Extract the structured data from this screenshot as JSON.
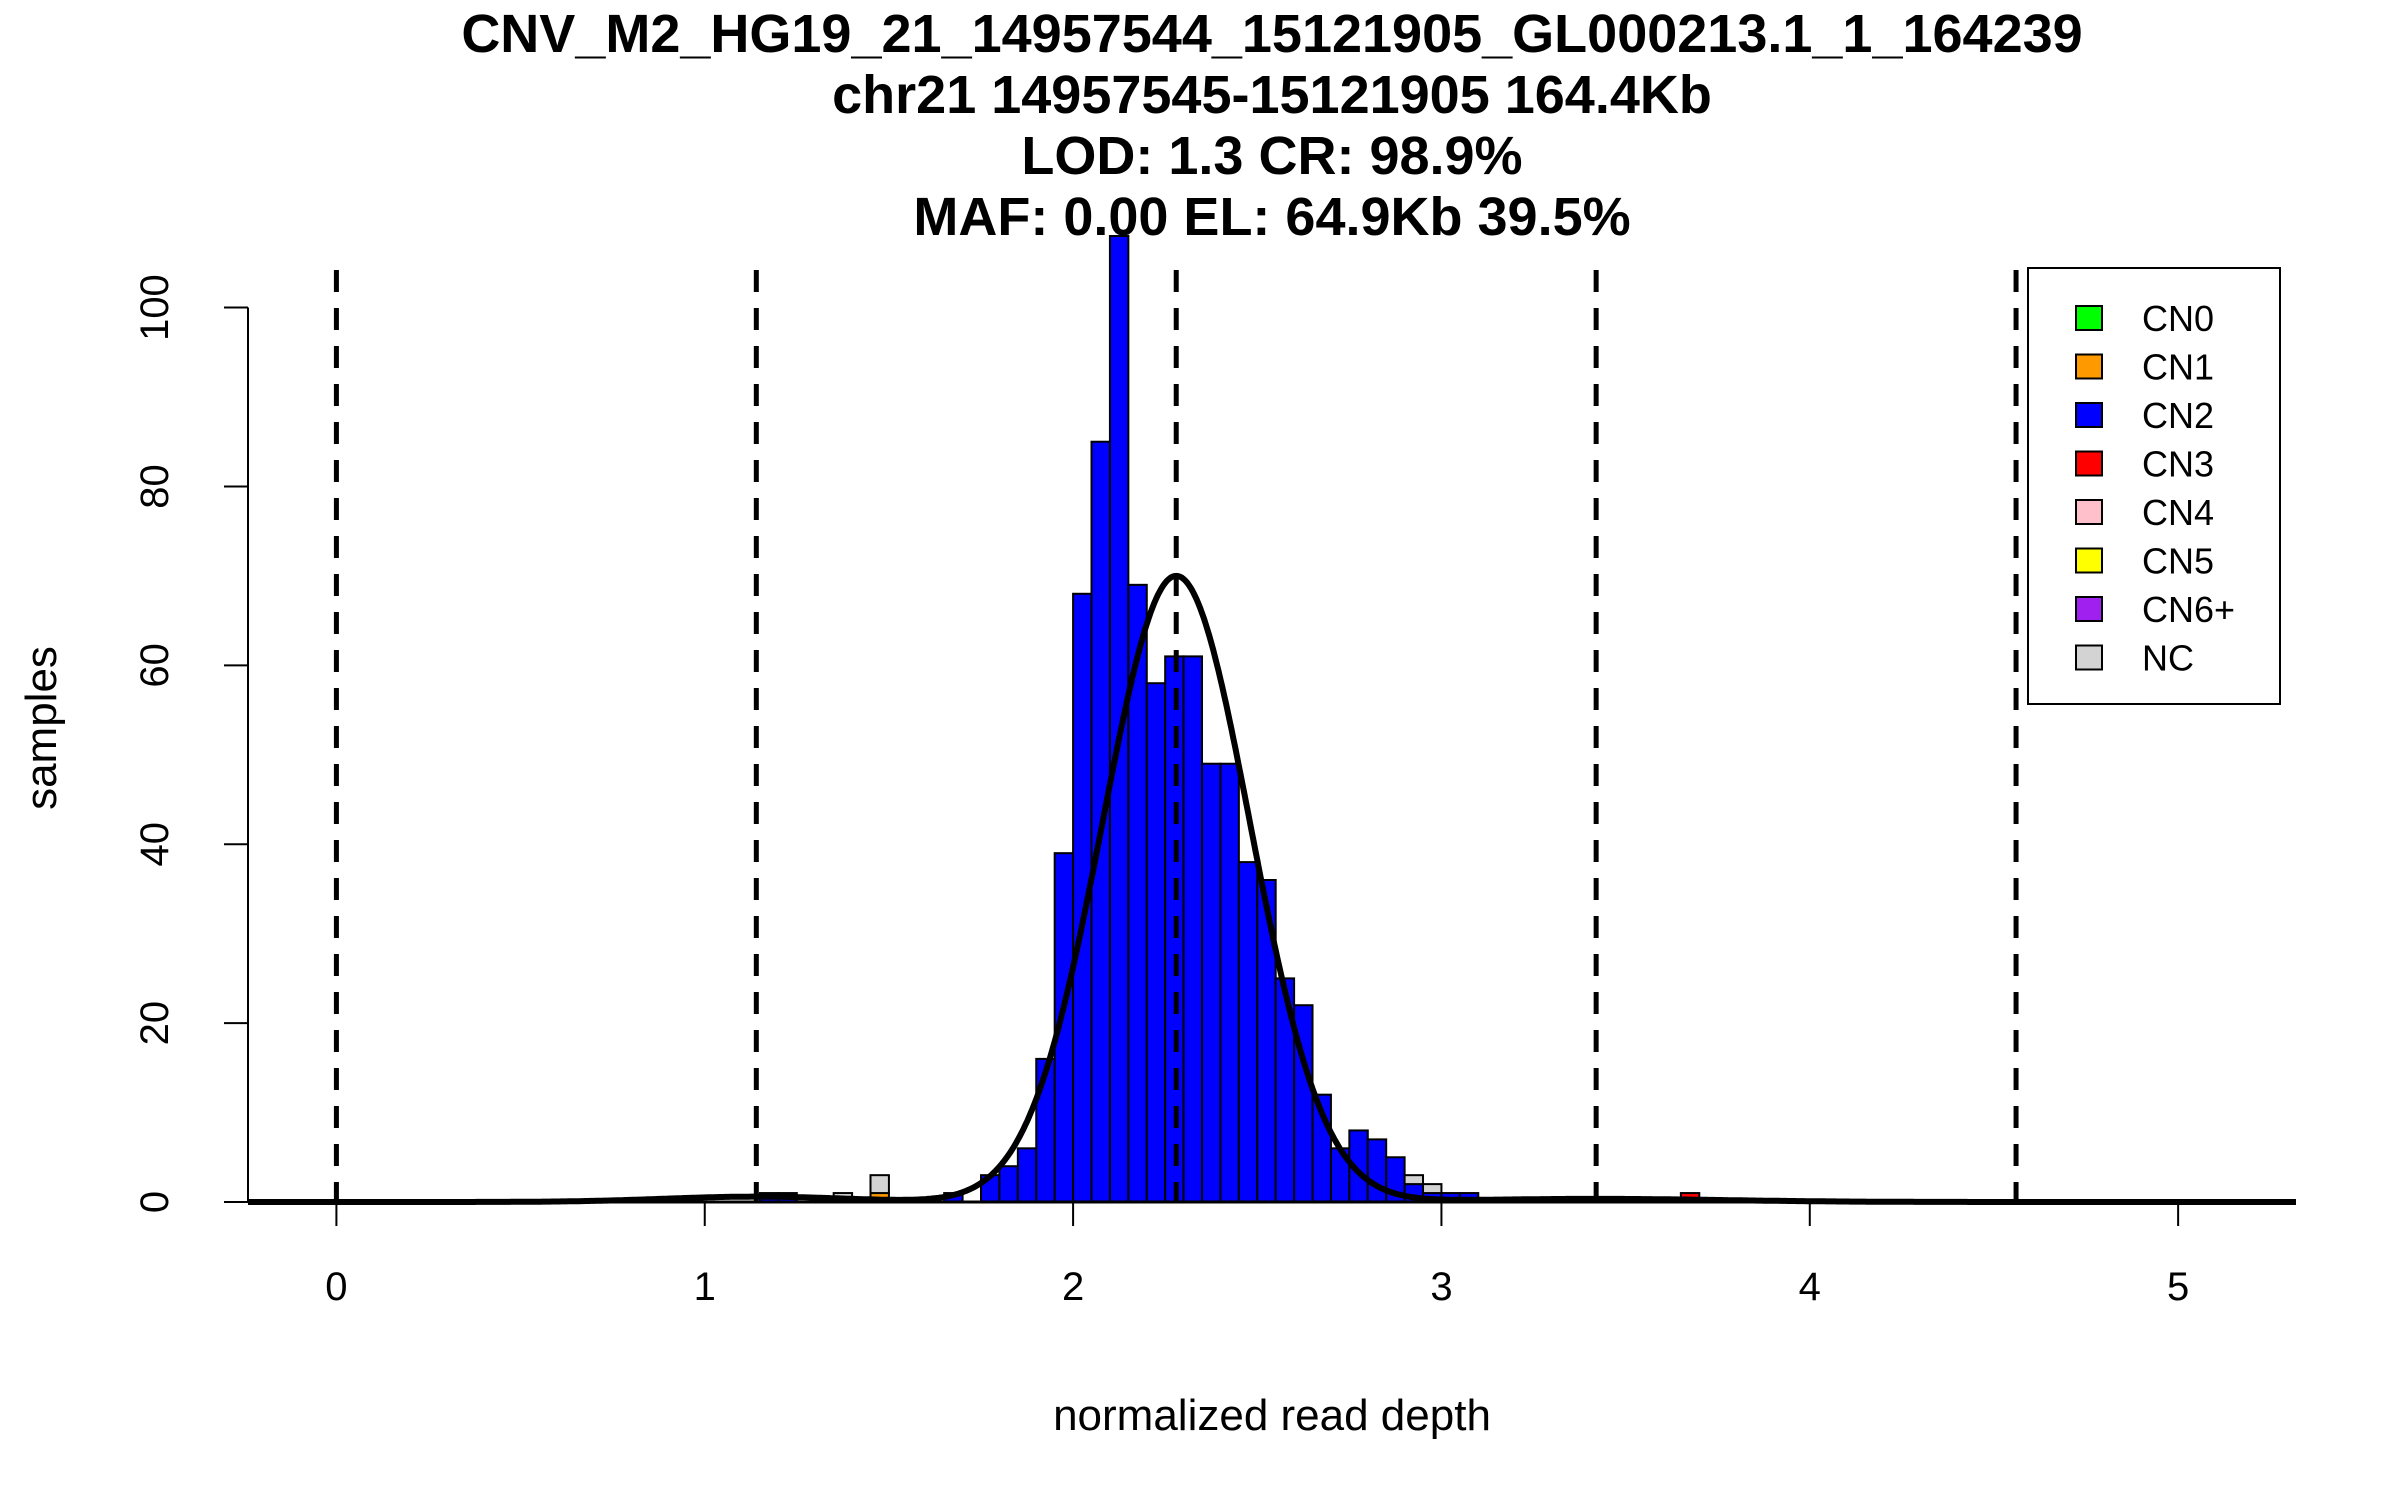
{
  "chart_data": {
    "type": "bar",
    "title_lines": [
      "CNV_M2_HG19_21_14957544_15121905_GL000213.1_1_164239",
      "chr21 14957545-15121905 164.4Kb",
      "LOD: 1.3 CR: 98.9%",
      "MAF: 0.00 EL: 64.9Kb 39.5%"
    ],
    "xlabel": "normalized read depth",
    "ylabel": "samples",
    "xlim": [
      -0.24,
      5.32
    ],
    "ylim": [
      0,
      108
    ],
    "x_ticks": [
      0,
      1,
      2,
      3,
      4,
      5
    ],
    "y_ticks": [
      0,
      20,
      40,
      60,
      80,
      100
    ],
    "bin_width": 0.05,
    "bins": [
      {
        "x": 1.15,
        "count": 1,
        "class": "CN2"
      },
      {
        "x": 1.2,
        "count": 1,
        "class": "CN2"
      },
      {
        "x": 1.35,
        "count": 1,
        "class": "NC"
      },
      {
        "x": 1.45,
        "count": 1,
        "class": "CN1"
      },
      {
        "x": 1.45,
        "count": 2,
        "class": "NC",
        "base": 1
      },
      {
        "x": 1.65,
        "count": 1,
        "class": "CN2"
      },
      {
        "x": 1.75,
        "count": 3,
        "class": "CN2"
      },
      {
        "x": 1.8,
        "count": 4,
        "class": "CN2"
      },
      {
        "x": 1.85,
        "count": 6,
        "class": "CN2"
      },
      {
        "x": 1.9,
        "count": 16,
        "class": "CN2"
      },
      {
        "x": 1.95,
        "count": 39,
        "class": "CN2"
      },
      {
        "x": 2.0,
        "count": 68,
        "class": "CN2"
      },
      {
        "x": 2.05,
        "count": 85,
        "class": "CN2"
      },
      {
        "x": 2.1,
        "count": 108,
        "class": "CN2"
      },
      {
        "x": 2.15,
        "count": 69,
        "class": "CN2"
      },
      {
        "x": 2.2,
        "count": 58,
        "class": "CN2"
      },
      {
        "x": 2.25,
        "count": 61,
        "class": "CN2"
      },
      {
        "x": 2.3,
        "count": 61,
        "class": "CN2"
      },
      {
        "x": 2.35,
        "count": 49,
        "class": "CN2"
      },
      {
        "x": 2.4,
        "count": 49,
        "class": "CN2"
      },
      {
        "x": 2.45,
        "count": 38,
        "class": "CN2"
      },
      {
        "x": 2.5,
        "count": 36,
        "class": "CN2"
      },
      {
        "x": 2.55,
        "count": 25,
        "class": "CN2"
      },
      {
        "x": 2.6,
        "count": 22,
        "class": "CN2"
      },
      {
        "x": 2.65,
        "count": 12,
        "class": "CN2"
      },
      {
        "x": 2.7,
        "count": 6,
        "class": "CN2"
      },
      {
        "x": 2.75,
        "count": 8,
        "class": "CN2"
      },
      {
        "x": 2.8,
        "count": 7,
        "class": "CN2"
      },
      {
        "x": 2.85,
        "count": 5,
        "class": "CN2"
      },
      {
        "x": 2.9,
        "count": 2,
        "class": "CN2"
      },
      {
        "x": 2.9,
        "count": 1,
        "class": "NC",
        "base": 2
      },
      {
        "x": 2.95,
        "count": 1,
        "class": "CN2"
      },
      {
        "x": 2.95,
        "count": 1,
        "class": "NC",
        "base": 1
      },
      {
        "x": 3.0,
        "count": 1,
        "class": "CN2"
      },
      {
        "x": 3.05,
        "count": 1,
        "class": "CN2"
      },
      {
        "x": 3.65,
        "count": 1,
        "class": "CN3"
      }
    ],
    "curve": {
      "mean": 2.28,
      "sd": 0.2,
      "peak": 70,
      "secondary": [
        {
          "mean": 1.14,
          "sd": 0.25,
          "peak": 0.6
        },
        {
          "mean": 3.42,
          "sd": 0.35,
          "peak": 0.35
        }
      ]
    },
    "dashed_lines_x": [
      0,
      1.14,
      2.28,
      3.42,
      4.56
    ],
    "legend": {
      "position": "top-right",
      "entries": [
        {
          "label": "CN0",
          "color": "#00ff00"
        },
        {
          "label": "CN1",
          "color": "#ff9900"
        },
        {
          "label": "CN2",
          "color": "#0000ff"
        },
        {
          "label": "CN3",
          "color": "#ff0000"
        },
        {
          "label": "CN4",
          "color": "#ffc0cb"
        },
        {
          "label": "CN5",
          "color": "#ffff00"
        },
        {
          "label": "CN6+",
          "color": "#a020f0"
        },
        {
          "label": "NC",
          "color": "#d3d3d3"
        }
      ]
    }
  }
}
